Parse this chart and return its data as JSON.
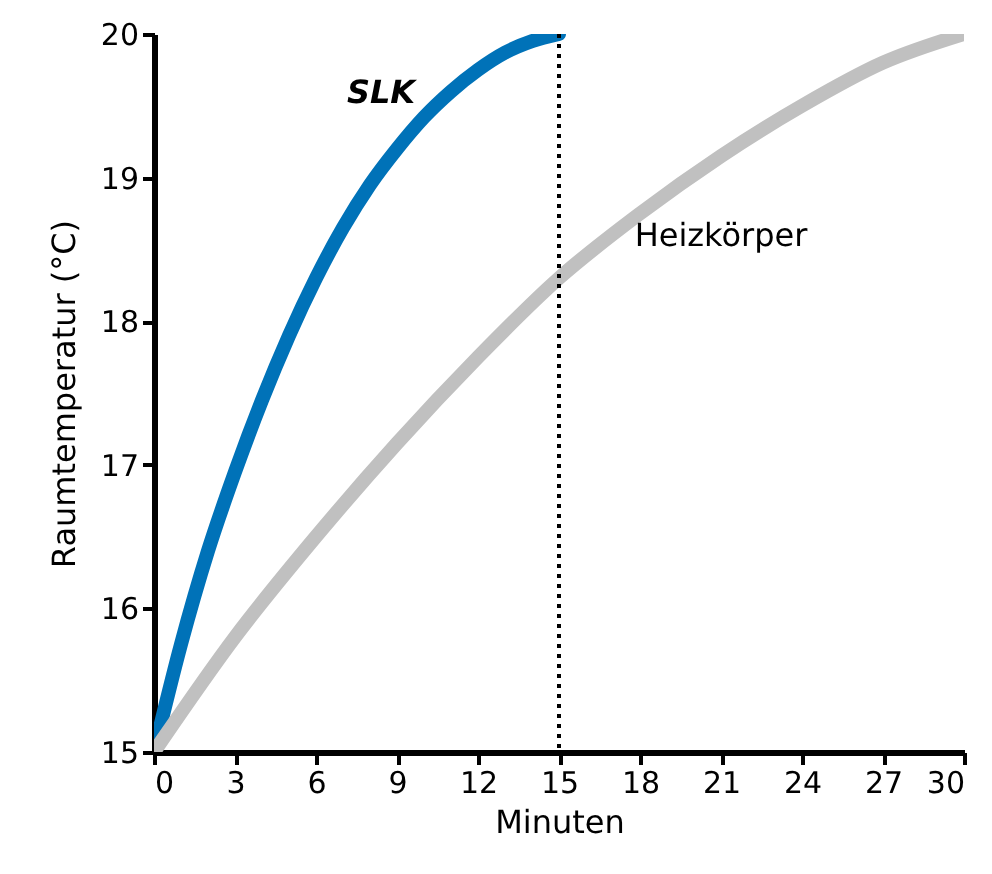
{
  "chart_data": {
    "type": "line",
    "xlabel": "Minuten",
    "ylabel": "Raumtemperatur (°C)",
    "xlim": [
      0,
      30
    ],
    "xticks": [
      0,
      3,
      6,
      9,
      12,
      15,
      18,
      21,
      24,
      27,
      30
    ],
    "ylim": [
      15,
      20
    ],
    "yticks": [
      15,
      16,
      17,
      18,
      19,
      20
    ],
    "grid": false,
    "legend": false,
    "line_style": "solid",
    "series": [
      {
        "name": "SLK",
        "color": "#0072b8",
        "x": [
          0,
          1,
          2,
          3,
          4,
          5,
          6,
          7,
          8,
          9,
          10,
          11,
          12,
          13,
          14,
          15
        ],
        "values": [
          15,
          15.75,
          16.4,
          16.95,
          17.45,
          17.9,
          18.3,
          18.65,
          18.95,
          19.2,
          19.42,
          19.6,
          19.75,
          19.87,
          19.95,
          20
        ]
      },
      {
        "name": "Heizkörper",
        "color": "#c0c0c0",
        "x": [
          0,
          3,
          6,
          9,
          12,
          15,
          18,
          21,
          24,
          27,
          30
        ],
        "values": [
          15,
          15.8,
          16.5,
          17.15,
          17.75,
          18.3,
          18.75,
          19.15,
          19.5,
          19.8,
          20
        ]
      }
    ],
    "ref_lines": [
      {
        "axis": "x",
        "value": 15,
        "color": "#000000",
        "line_style": "dotted"
      }
    ]
  }
}
